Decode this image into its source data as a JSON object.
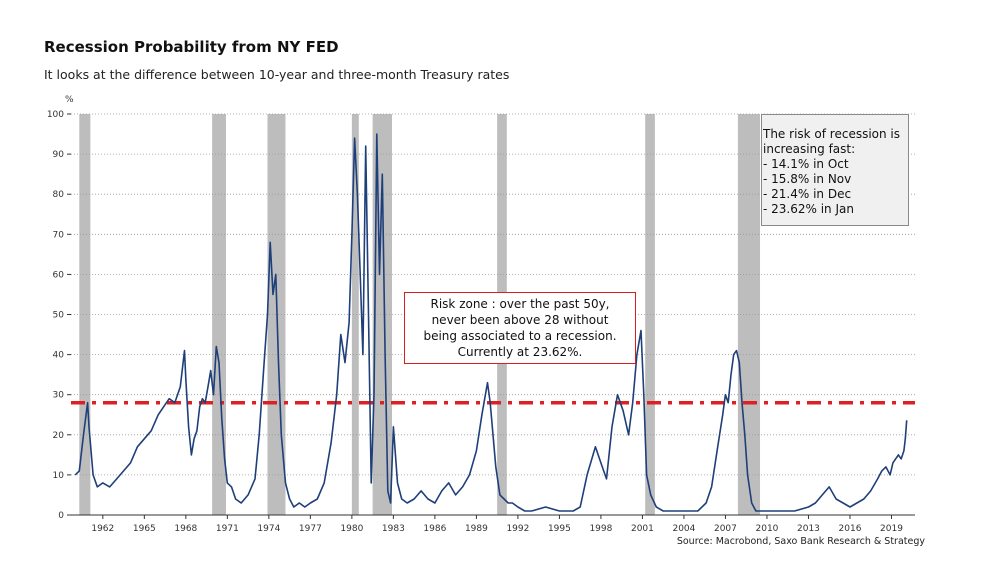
{
  "title": "Recession Probability from NY FED",
  "subtitle": "It looks at the difference between 10-year and three-month Treasury rates",
  "source": "Source: Macrobond, Saxo Bank Research & Strategy",
  "note_box": {
    "lines": [
      "The risk of recession is",
      "increasing fast:",
      "- 14.1% in Oct",
      "- 15.8% in Nov",
      "- 21.4% in Dec",
      "- 23.62% in Jan"
    ]
  },
  "risk_box": {
    "lines": [
      "Risk zone : over the past 50y,",
      "never been above 28 without",
      "being associated to a recession.",
      "Currently at 23.62%."
    ]
  },
  "colors": {
    "line": "#1f3f7a",
    "threshold": "#e02020",
    "recession": "#bdbdbd",
    "grid": "#9a9a9a"
  },
  "chart_data": {
    "type": "line",
    "title": "Recession Probability from NY FED",
    "subtitle": "It looks at the difference between 10-year and three-month Treasury rates",
    "ylabel": "%",
    "ylim": [
      0,
      100
    ],
    "xlim": [
      1959.7,
      2020.7
    ],
    "yticks": [
      0,
      10,
      20,
      30,
      40,
      50,
      60,
      70,
      80,
      90,
      100
    ],
    "xticks": [
      "1962",
      "1965",
      "1968",
      "1971",
      "1974",
      "1977",
      "1980",
      "1983",
      "1986",
      "1989",
      "1992",
      "1995",
      "1998",
      "2001",
      "2004",
      "2007",
      "2010",
      "2013",
      "2016",
      "2019"
    ],
    "grid": true,
    "threshold": 28,
    "recessions": [
      [
        1960.3,
        1961.1
      ],
      [
        1969.9,
        1970.9
      ],
      [
        1973.9,
        1975.2
      ],
      [
        1980.0,
        1980.5
      ],
      [
        1981.5,
        1982.9
      ],
      [
        1990.5,
        1991.2
      ],
      [
        2001.2,
        2001.9
      ],
      [
        2007.9,
        2009.5
      ]
    ],
    "series": [
      {
        "x": [
          1960.0,
          1960.3,
          1960.6,
          1960.9,
          1961.0,
          1961.3,
          1961.6,
          1962.0,
          1962.5,
          1963.0,
          1963.5,
          1964.0,
          1964.5,
          1965.0,
          1965.5,
          1966.0,
          1966.4,
          1966.8,
          1967.2,
          1967.6,
          1967.9,
          1968.0,
          1968.2,
          1968.4,
          1968.6,
          1968.8,
          1969.0,
          1969.2,
          1969.4,
          1969.6,
          1969.8,
          1970.0,
          1970.2,
          1970.4,
          1970.6,
          1970.8,
          1971.0,
          1971.3,
          1971.6,
          1972.0,
          1972.5,
          1973.0,
          1973.3,
          1973.6,
          1973.9,
          1974.1,
          1974.3,
          1974.5,
          1974.7,
          1974.9,
          1975.2,
          1975.5,
          1975.8,
          1976.2,
          1976.6,
          1977.0,
          1977.5,
          1978.0,
          1978.5,
          1978.9,
          1979.2,
          1979.5,
          1979.8,
          1980.0,
          1980.2,
          1980.4,
          1980.6,
          1980.8,
          1981.0,
          1981.2,
          1981.4,
          1981.6,
          1981.8,
          1982.0,
          1982.2,
          1982.4,
          1982.6,
          1982.8,
          1983.0,
          1983.3,
          1983.6,
          1984.0,
          1984.5,
          1985.0,
          1985.5,
          1986.0,
          1986.5,
          1987.0,
          1987.5,
          1988.0,
          1988.5,
          1989.0,
          1989.4,
          1989.8,
          1990.0,
          1990.2,
          1990.4,
          1990.7,
          1991.0,
          1991.3,
          1991.6,
          1992.0,
          1992.5,
          1993.0,
          1994.0,
          1995.0,
          1996.0,
          1996.5,
          1997.0,
          1997.6,
          1998.0,
          1998.4,
          1998.8,
          1999.2,
          1999.6,
          2000.0,
          2000.3,
          2000.6,
          2000.9,
          2001.1,
          2001.3,
          2001.6,
          2002.0,
          2002.5,
          2003.0,
          2004.0,
          2005.0,
          2005.6,
          2006.0,
          2006.4,
          2006.8,
          2007.0,
          2007.2,
          2007.4,
          2007.6,
          2007.8,
          2008.0,
          2008.2,
          2008.4,
          2008.6,
          2008.9,
          2009.2,
          2009.5,
          2010.0,
          2011.0,
          2012.0,
          2013.0,
          2013.5,
          2014.0,
          2014.5,
          2015.0,
          2015.5,
          2016.0,
          2016.5,
          2017.0,
          2017.5,
          2018.0,
          2018.3,
          2018.6,
          2018.9,
          2019.1,
          2019.3,
          2019.5,
          2019.7,
          2019.9,
          2020.0,
          2020.1
        ],
        "y": [
          10,
          11,
          20,
          28,
          22,
          10,
          7,
          8,
          7,
          9,
          11,
          13,
          17,
          19,
          21,
          25,
          27,
          29,
          28,
          32,
          41,
          34,
          22,
          15,
          19,
          21,
          27,
          29,
          28,
          32,
          36,
          30,
          42,
          38,
          24,
          14,
          8,
          7,
          4,
          3,
          5,
          9,
          20,
          35,
          50,
          68,
          55,
          60,
          38,
          20,
          8,
          4,
          2,
          3,
          2,
          3,
          4,
          8,
          18,
          30,
          45,
          38,
          48,
          70,
          94,
          80,
          60,
          40,
          92,
          50,
          8,
          30,
          95,
          60,
          85,
          40,
          6,
          3,
          22,
          8,
          4,
          3,
          4,
          6,
          4,
          3,
          6,
          8,
          5,
          7,
          10,
          16,
          25,
          33,
          28,
          20,
          12,
          5,
          4,
          3,
          3,
          2,
          1,
          1,
          2,
          1,
          1,
          2,
          10,
          17,
          13,
          9,
          22,
          30,
          26,
          20,
          28,
          40,
          46,
          30,
          10,
          5,
          2,
          1,
          1,
          1,
          1,
          3,
          7,
          16,
          25,
          30,
          28,
          35,
          40,
          41,
          38,
          28,
          20,
          10,
          3,
          1,
          1,
          1,
          1,
          1,
          2,
          3,
          5,
          7,
          4,
          3,
          2,
          3,
          4,
          6,
          9,
          11,
          12,
          10,
          13,
          14,
          15,
          14,
          16,
          19,
          23.62
        ]
      }
    ]
  }
}
